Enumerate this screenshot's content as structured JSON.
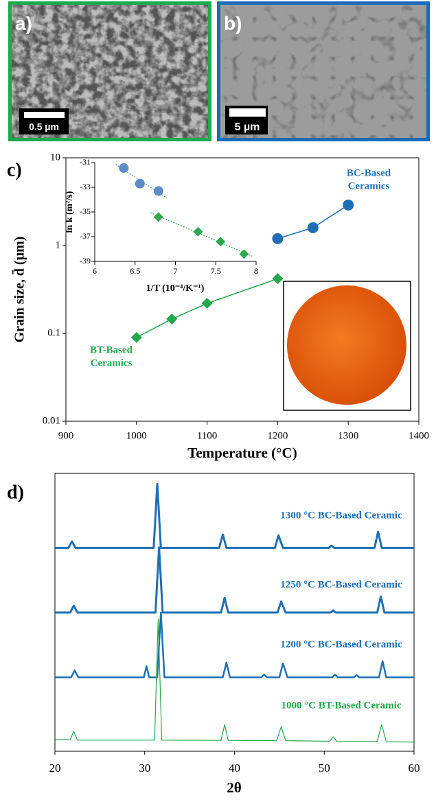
{
  "panels": [
    {
      "label": "a)",
      "scale_bar": "0.5 µm"
    },
    {
      "label": "b)",
      "scale_bar": "5 µm"
    }
  ],
  "chart_data": [
    {
      "type": "line",
      "panel_label": "c)",
      "xlabel": "Temperature (°C)",
      "ylabel": "Grain size, d̄ (µm)",
      "log_y": true,
      "xlim": [
        900,
        1400
      ],
      "xticks": [
        900,
        1000,
        1100,
        1200,
        1300,
        1400
      ],
      "ylim": [
        0.01,
        10
      ],
      "yticks": [
        0.01,
        0.1,
        1,
        10
      ],
      "series": [
        {
          "label_lines": [
            "BC-Based",
            "Ceramics"
          ],
          "color": "#1f6fb5",
          "marker": "circle",
          "x": [
            1200,
            1250,
            1300
          ],
          "values": [
            1.2,
            1.6,
            2.9
          ]
        },
        {
          "label_lines": [
            "BT-Based",
            "Ceramics"
          ],
          "color": "#22a84a",
          "marker": "diamond",
          "x": [
            1000,
            1050,
            1100,
            1200
          ],
          "values": [
            0.09,
            0.146,
            0.22,
            0.42
          ]
        }
      ]
    },
    {
      "type": "scatter",
      "xlabel": "1/T (10⁻⁴/K⁻¹)",
      "ylabel": "ln k (m²/s)",
      "trendline": true,
      "xlim": [
        6,
        8
      ],
      "xticks": [
        6,
        6.5,
        7,
        7.5,
        8
      ],
      "ylim": [
        -39,
        -31
      ],
      "yticks": [
        -39,
        -37,
        -35,
        -33,
        -31
      ],
      "series": [
        {
          "color": "#5b8cc8",
          "marker": "circle",
          "x": [
            6.36,
            6.56,
            6.79
          ],
          "values": [
            -31.44,
            -32.7,
            -33.3
          ]
        },
        {
          "color": "#2ea84f",
          "marker": "diamond",
          "x": [
            6.79,
            7.28,
            7.56,
            7.85
          ],
          "values": [
            -35.4,
            -36.6,
            -37.4,
            -38.4
          ]
        }
      ]
    },
    {
      "type": "line",
      "panel_label": "d)",
      "xlabel": "2θ",
      "xlim": [
        20,
        60
      ],
      "xticks": [
        20,
        30,
        40,
        50,
        60
      ],
      "ylim": [
        0,
        100
      ],
      "series": [
        {
          "name": "1300 °C BC-Based Ceramic",
          "color": "#1f6fb5",
          "width": 3,
          "x": [
            20,
            21.5,
            21.9,
            22.3,
            31.0,
            31.4,
            31.8,
            38.3,
            38.7,
            39.1,
            44.5,
            44.9,
            45.4,
            50.5,
            50.8,
            51.1,
            55.6,
            56.0,
            56.4,
            60
          ],
          "values": [
            73.2,
            73.2,
            75.5,
            73.2,
            73.2,
            96.2,
            73.2,
            73.2,
            78.0,
            73.2,
            73.2,
            77.7,
            73.2,
            73.2,
            74.0,
            73.2,
            73.2,
            79.0,
            73.2,
            73.2
          ]
        },
        {
          "name": "1250 °C BC-Based Ceramic",
          "color": "#1f6fb5",
          "width": 3,
          "x": [
            20,
            21.7,
            22.1,
            22.5,
            31.2,
            31.6,
            32.0,
            38.5,
            38.9,
            39.3,
            44.8,
            45.2,
            45.7,
            50.7,
            51.0,
            51.3,
            55.9,
            56.3,
            56.7,
            60
          ],
          "values": [
            49.9,
            49.9,
            52.4,
            49.9,
            49.9,
            73.4,
            49.9,
            49.9,
            55.2,
            49.9,
            49.9,
            53.9,
            49.9,
            49.9,
            50.7,
            49.9,
            49.9,
            55.7,
            49.9,
            49.9
          ]
        },
        {
          "name": "1200 °C BC-Based Ceramic",
          "color": "#1f6fb5",
          "width": 2.5,
          "x": [
            20,
            21.8,
            22.2,
            22.6,
            29.9,
            30.2,
            30.5,
            31.4,
            31.8,
            32.2,
            38.7,
            39.1,
            39.5,
            43.0,
            43.3,
            43.6,
            45.0,
            45.4,
            45.9,
            50.9,
            51.2,
            51.5,
            53.3,
            53.6,
            53.9,
            56.1,
            56.5,
            56.9,
            60
          ],
          "values": [
            26.6,
            26.6,
            29.1,
            26.6,
            26.6,
            30.6,
            26.6,
            26.6,
            49.9,
            26.6,
            26.6,
            31.9,
            26.6,
            26.6,
            27.6,
            26.6,
            26.6,
            31.6,
            26.6,
            26.6,
            27.6,
            26.6,
            26.6,
            27.4,
            26.6,
            26.6,
            32.4,
            26.6,
            26.6
          ]
        },
        {
          "name": "1000 °C BT-Based Ceramic",
          "color": "#22a84a",
          "width": 1.2,
          "x": [
            20,
            21.7,
            22.1,
            22.5,
            31.1,
            31.5,
            31.9,
            38.5,
            38.9,
            39.3,
            44.7,
            45.2,
            45.7,
            50.6,
            51.0,
            51.4,
            55.9,
            56.4,
            56.9,
            60
          ],
          "values": [
            4.2,
            4.1,
            7.2,
            4.0,
            4.0,
            47.6,
            4.0,
            3.9,
            9.5,
            3.9,
            3.8,
            8.8,
            3.8,
            3.6,
            5.2,
            3.5,
            3.5,
            9.6,
            3.4,
            3.3
          ]
        }
      ]
    }
  ]
}
